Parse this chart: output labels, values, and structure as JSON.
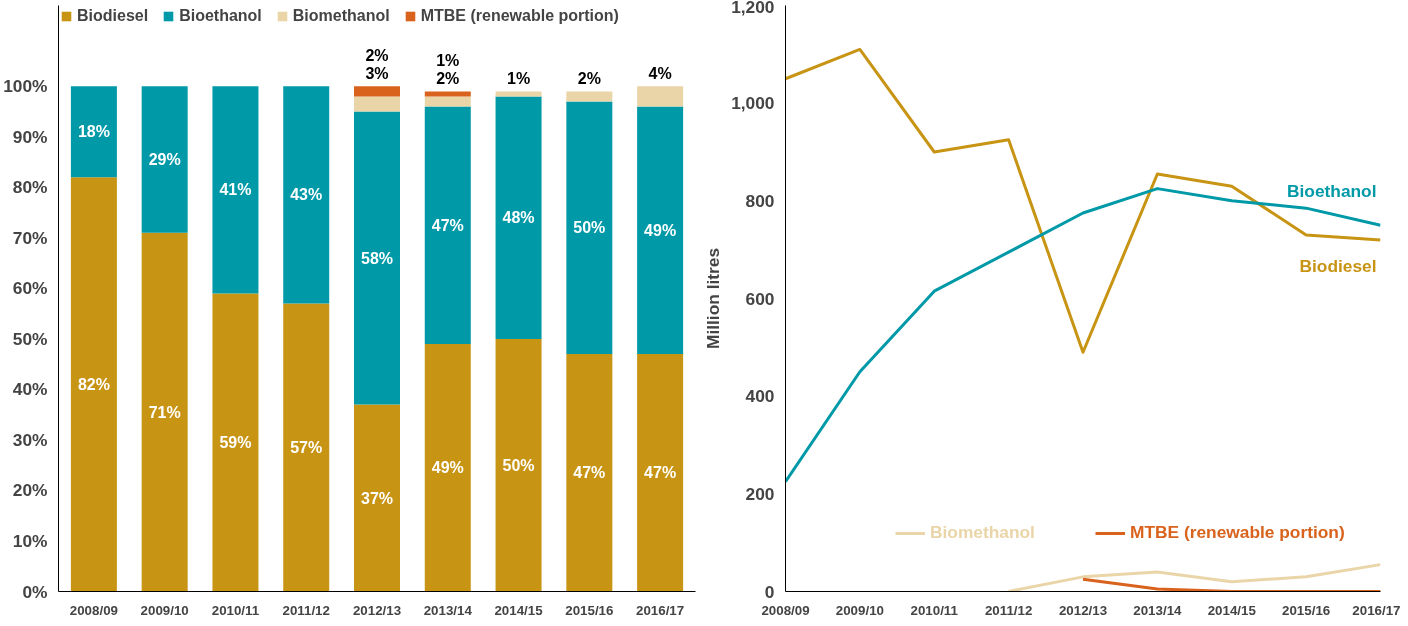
{
  "chart_data": [
    {
      "type": "bar",
      "stacked": true,
      "categories": [
        "2008/09",
        "2009/10",
        "2010/11",
        "2011/12",
        "2012/13",
        "2013/14",
        "2014/15",
        "2015/16",
        "2016/17"
      ],
      "series": [
        {
          "name": "Biodiesel",
          "color": "#c89414",
          "values": [
            82,
            71,
            59,
            57,
            37,
            49,
            50,
            47,
            47
          ],
          "value_labels": [
            "82%",
            "71%",
            "59%",
            "57%",
            "37%",
            "49%",
            "50%",
            "47%",
            "47%"
          ]
        },
        {
          "name": "Bioethanol",
          "color": "#0099a8",
          "values": [
            18,
            29,
            41,
            43,
            58,
            47,
            48,
            50,
            49
          ],
          "value_labels": [
            "18%",
            "29%",
            "41%",
            "43%",
            "58%",
            "47%",
            "48%",
            "50%",
            "49%"
          ]
        },
        {
          "name": "Biomethanol",
          "color": "#ead5a8",
          "values": [
            0,
            0,
            0,
            0,
            3,
            2,
            1,
            2,
            4
          ],
          "value_labels": [
            null,
            null,
            null,
            null,
            "3%",
            "2%",
            "1%",
            "2%",
            "4%"
          ]
        },
        {
          "name": "MTBE (renewable portion)",
          "color": "#d9621c",
          "values": [
            0,
            0,
            0,
            0,
            2,
            1,
            0,
            0,
            0
          ],
          "value_labels": [
            null,
            null,
            null,
            null,
            "2%",
            "1%",
            null,
            null,
            null
          ]
        }
      ],
      "ylim": [
        0,
        116
      ],
      "yticks": [
        {
          "value": 0,
          "label": "0%"
        },
        {
          "value": 10,
          "label": "10%"
        },
        {
          "value": 20,
          "label": "20%"
        },
        {
          "value": 30,
          "label": "30%"
        },
        {
          "value": 40,
          "label": "40%"
        },
        {
          "value": 50,
          "label": "50%"
        },
        {
          "value": 60,
          "label": "60%"
        },
        {
          "value": 70,
          "label": "70%"
        },
        {
          "value": 80,
          "label": "80%"
        },
        {
          "value": 90,
          "label": "90%"
        },
        {
          "value": 100,
          "label": "100%"
        }
      ],
      "legend": "top",
      "grid": false
    },
    {
      "type": "line",
      "ylabel": "Million litres",
      "categories": [
        "2008/09",
        "2009/10",
        "2010/11",
        "2011/12",
        "2012/13",
        "2013/14",
        "2014/15",
        "2015/16",
        "2016/17"
      ],
      "series": [
        {
          "name": "Biodiesel",
          "color": "#c89414",
          "values": [
            1050,
            1110,
            900,
            925,
            490,
            855,
            830,
            730,
            720
          ]
        },
        {
          "name": "Bioethanol",
          "color": "#0099a8",
          "values": [
            225,
            450,
            615,
            695,
            775,
            825,
            800,
            785,
            750
          ]
        },
        {
          "name": "Biomethanol",
          "color": "#ead5a8",
          "values": [
            null,
            null,
            null,
            0,
            30,
            40,
            20,
            30,
            55
          ]
        },
        {
          "name": "MTBE (renewable portion)",
          "color": "#d9621c",
          "values": [
            null,
            null,
            null,
            null,
            25,
            5,
            0,
            0,
            0
          ]
        }
      ],
      "ylim": [
        0,
        1200
      ],
      "yticks": [
        0,
        {
          "value": 200,
          "label": "200"
        },
        {
          "value": 400,
          "label": "400"
        },
        {
          "value": 600,
          "label": "600"
        },
        {
          "value": 800,
          "label": "800"
        },
        {
          "value": 1000,
          "label": "1,000"
        },
        {
          "value": 1200,
          "label": "1,200"
        }
      ],
      "legend": "bottom",
      "grid": false
    }
  ]
}
